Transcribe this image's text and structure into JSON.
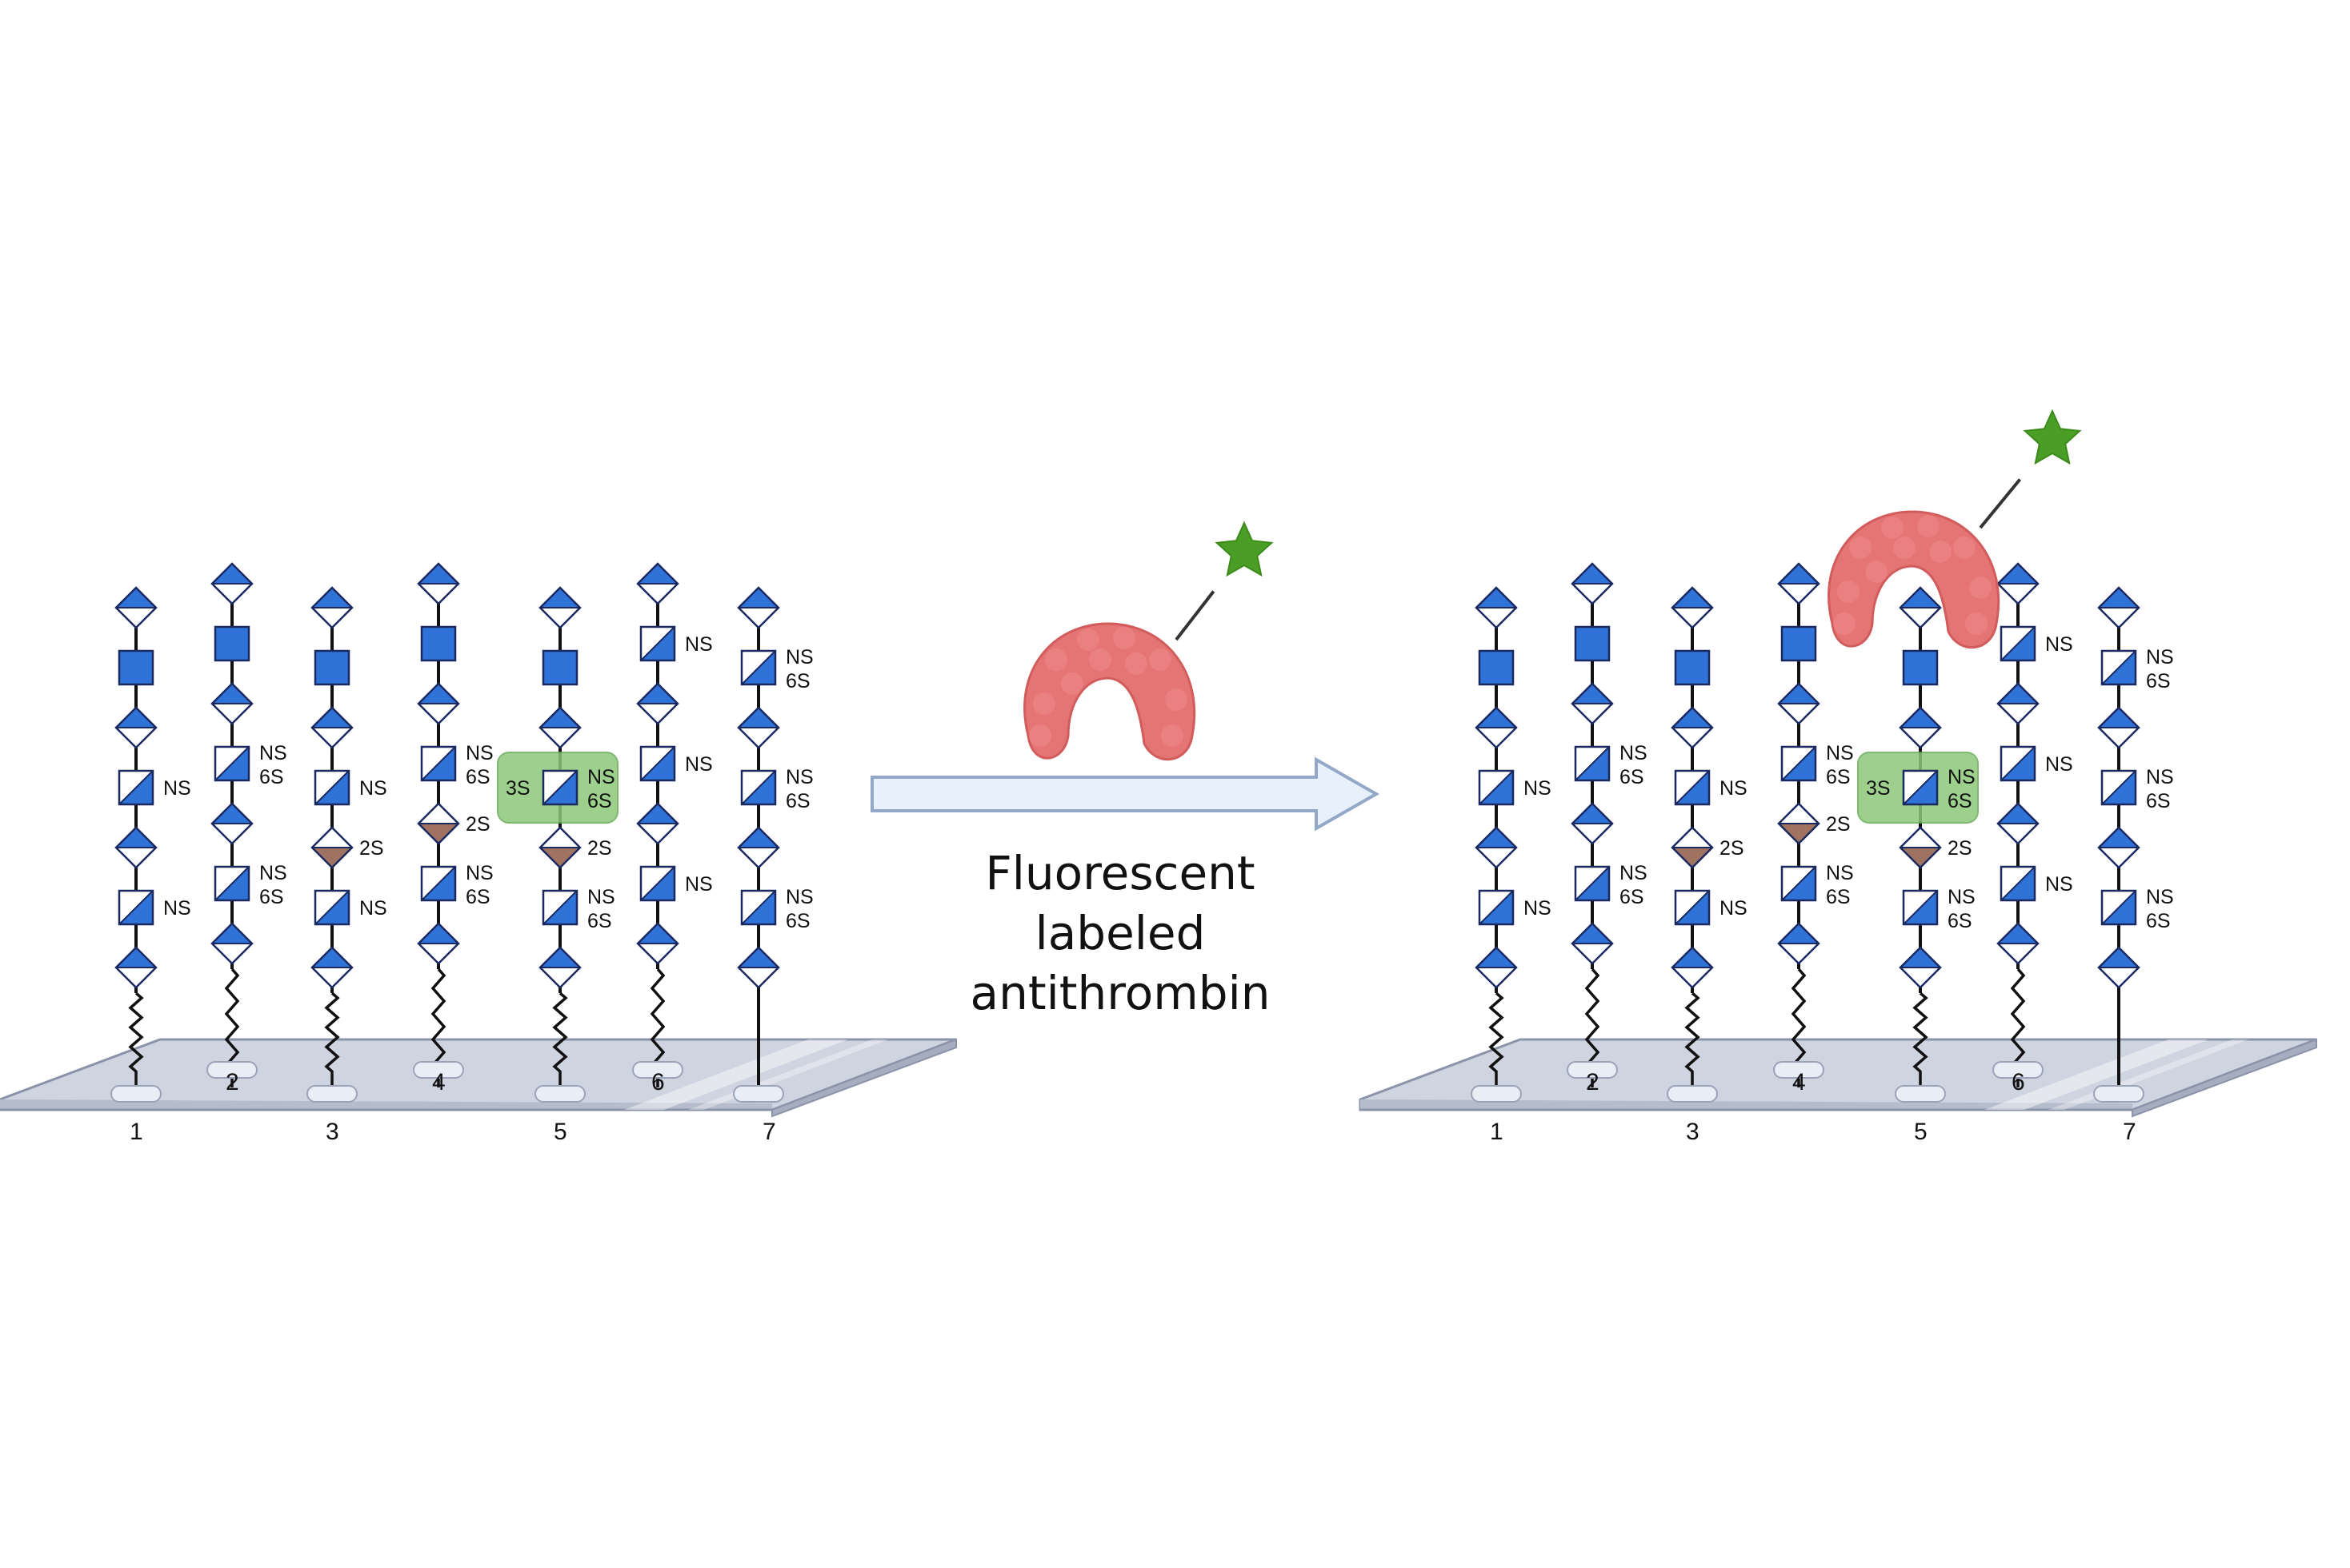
{
  "caption": [
    "Fluorescent",
    "labeled",
    "antithrombin"
  ],
  "colors": {
    "glcnac_blue": "#2f72d8",
    "stroke": "#1a2a60",
    "iduronic_brown": "#a07261",
    "highlight_green": "#8cc77a",
    "protein_red": "#e57474",
    "star_green": "#4a9e25",
    "slide_fill": "#cfd4e1",
    "arrow_fill": "#e8f1fb",
    "arrow_stroke": "#93a8c8"
  },
  "icons": [
    "glcnac-square-icon",
    "uronic-acid-diamond-icon",
    "antithrombin-protein-icon",
    "fluorescent-star-icon",
    "glass-slide-icon",
    "flow-arrow-icon"
  ],
  "panels": [
    {
      "name": "before",
      "protein_bound": false
    },
    {
      "name": "after",
      "protein_bound": true
    }
  ],
  "highlight": {
    "chain": "5",
    "label_left": "3S",
    "label_right": [
      "NS",
      "6S"
    ]
  },
  "chains": [
    {
      "number": "1",
      "linker": "wavy",
      "units": [
        {
          "shape": "diamond",
          "fill": "half",
          "labels": []
        },
        {
          "shape": "square",
          "fill": "full",
          "labels": []
        },
        {
          "shape": "diamond",
          "fill": "half",
          "labels": []
        },
        {
          "shape": "square",
          "fill": "diag",
          "labels": [
            "NS"
          ]
        },
        {
          "shape": "diamond",
          "fill": "half",
          "labels": []
        },
        {
          "shape": "square",
          "fill": "diag",
          "labels": [
            "NS"
          ]
        },
        {
          "shape": "diamond",
          "fill": "half",
          "labels": []
        }
      ]
    },
    {
      "number": "2",
      "linker": "wavy",
      "units": [
        {
          "shape": "diamond",
          "fill": "half",
          "labels": []
        },
        {
          "shape": "square",
          "fill": "full",
          "labels": []
        },
        {
          "shape": "diamond",
          "fill": "half",
          "labels": []
        },
        {
          "shape": "square",
          "fill": "diag",
          "labels": [
            "NS",
            "6S"
          ]
        },
        {
          "shape": "diamond",
          "fill": "half",
          "labels": []
        },
        {
          "shape": "square",
          "fill": "diag",
          "labels": [
            "NS",
            "6S"
          ]
        },
        {
          "shape": "diamond",
          "fill": "half",
          "labels": []
        }
      ]
    },
    {
      "number": "3",
      "linker": "wavy",
      "units": [
        {
          "shape": "diamond",
          "fill": "half",
          "labels": []
        },
        {
          "shape": "square",
          "fill": "full",
          "labels": []
        },
        {
          "shape": "diamond",
          "fill": "half",
          "labels": []
        },
        {
          "shape": "square",
          "fill": "diag",
          "labels": [
            "NS"
          ]
        },
        {
          "shape": "diamond",
          "fill": "brown",
          "labels": [
            "2S"
          ]
        },
        {
          "shape": "square",
          "fill": "diag",
          "labels": [
            "NS"
          ]
        },
        {
          "shape": "diamond",
          "fill": "half",
          "labels": []
        }
      ]
    },
    {
      "number": "4",
      "linker": "wavy",
      "units": [
        {
          "shape": "diamond",
          "fill": "half",
          "labels": []
        },
        {
          "shape": "square",
          "fill": "full",
          "labels": []
        },
        {
          "shape": "diamond",
          "fill": "half",
          "labels": []
        },
        {
          "shape": "square",
          "fill": "diag",
          "labels": [
            "NS",
            "6S"
          ]
        },
        {
          "shape": "diamond",
          "fill": "brown",
          "labels": [
            "2S"
          ]
        },
        {
          "shape": "square",
          "fill": "diag",
          "labels": [
            "NS",
            "6S"
          ]
        },
        {
          "shape": "diamond",
          "fill": "half",
          "labels": []
        }
      ]
    },
    {
      "number": "5",
      "linker": "wavy",
      "units": [
        {
          "shape": "diamond",
          "fill": "half",
          "labels": []
        },
        {
          "shape": "square",
          "fill": "full",
          "labels": []
        },
        {
          "shape": "diamond",
          "fill": "half",
          "labels": []
        },
        {
          "shape": "square",
          "fill": "diag",
          "labels": [
            "NS",
            "6S"
          ]
        },
        {
          "shape": "diamond",
          "fill": "brown",
          "labels": [
            "2S"
          ]
        },
        {
          "shape": "square",
          "fill": "diag",
          "labels": [
            "NS",
            "6S"
          ]
        },
        {
          "shape": "diamond",
          "fill": "half",
          "labels": []
        }
      ]
    },
    {
      "number": "6",
      "linker": "wavy",
      "units": [
        {
          "shape": "diamond",
          "fill": "half",
          "labels": []
        },
        {
          "shape": "square",
          "fill": "diag",
          "labels": [
            "NS"
          ]
        },
        {
          "shape": "diamond",
          "fill": "half",
          "labels": []
        },
        {
          "shape": "square",
          "fill": "diag",
          "labels": [
            "NS"
          ]
        },
        {
          "shape": "diamond",
          "fill": "half",
          "labels": []
        },
        {
          "shape": "square",
          "fill": "diag",
          "labels": [
            "NS"
          ]
        },
        {
          "shape": "diamond",
          "fill": "half",
          "labels": []
        }
      ]
    },
    {
      "number": "7",
      "linker": "straight",
      "units": [
        {
          "shape": "diamond",
          "fill": "half",
          "labels": []
        },
        {
          "shape": "square",
          "fill": "diag",
          "labels": [
            "NS",
            "6S"
          ]
        },
        {
          "shape": "diamond",
          "fill": "half",
          "labels": []
        },
        {
          "shape": "square",
          "fill": "diag",
          "labels": [
            "NS",
            "6S"
          ]
        },
        {
          "shape": "diamond",
          "fill": "half",
          "labels": []
        },
        {
          "shape": "square",
          "fill": "diag",
          "labels": [
            "NS",
            "6S"
          ]
        },
        {
          "shape": "diamond",
          "fill": "half",
          "labels": []
        }
      ]
    }
  ]
}
